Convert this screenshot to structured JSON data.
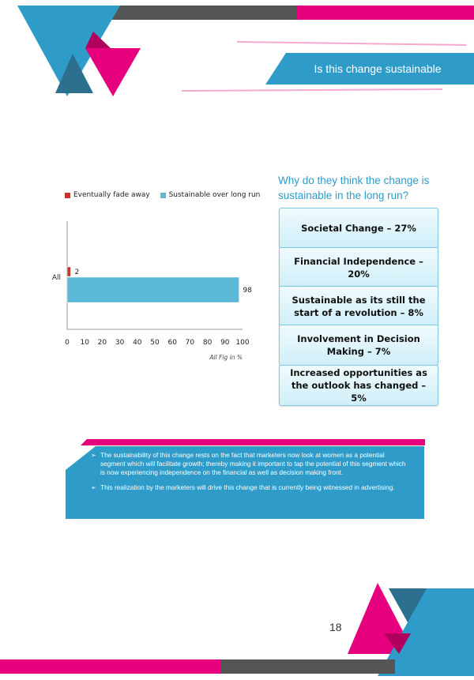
{
  "header": {
    "title": "Is this change sustainable"
  },
  "chart_data": {
    "type": "bar",
    "orientation": "horizontal",
    "categories": [
      "All"
    ],
    "series": [
      {
        "name": "Eventually fade away",
        "values": [
          2
        ],
        "color": "#c0392b"
      },
      {
        "name": "Sustainable over long run",
        "values": [
          98
        ],
        "color": "#5bb8d6"
      }
    ],
    "data_labels": [
      "2",
      "98"
    ],
    "xlim": [
      0,
      100
    ],
    "x_ticks": [
      "0",
      "10",
      "20",
      "30",
      "40",
      "50",
      "60",
      "70",
      "80",
      "90",
      "100"
    ],
    "note": "All Fig in %",
    "legend_position": "top"
  },
  "reasons": {
    "title": "Why do they think the change is sustainable in the long run?",
    "items": [
      "Societal Change – 27%",
      "Financial Independence – 20%",
      "Sustainable as its still the start of a revolution – 8%",
      "Involvement in Decision Making – 7%",
      "Increased opportunities as the outlook has changed – 5%"
    ]
  },
  "summary": {
    "bullet_symbol": "➢",
    "points": [
      "The sustainability of this change rests on the fact that marketers now look at women as a potential segment which will facilitate growth; thereby making it important to tap the potential of this segment which is now experiencing independence on the financial as well as decision making front.",
      "This realization by the marketers will drive this change that is currently being witnessed in advertising."
    ]
  },
  "footer": {
    "page_number": "18"
  },
  "colors": {
    "blue": "#2e9bc9",
    "dark_blue": "#2c6f8f",
    "magenta": "#e6007e",
    "gray": "#555555"
  }
}
